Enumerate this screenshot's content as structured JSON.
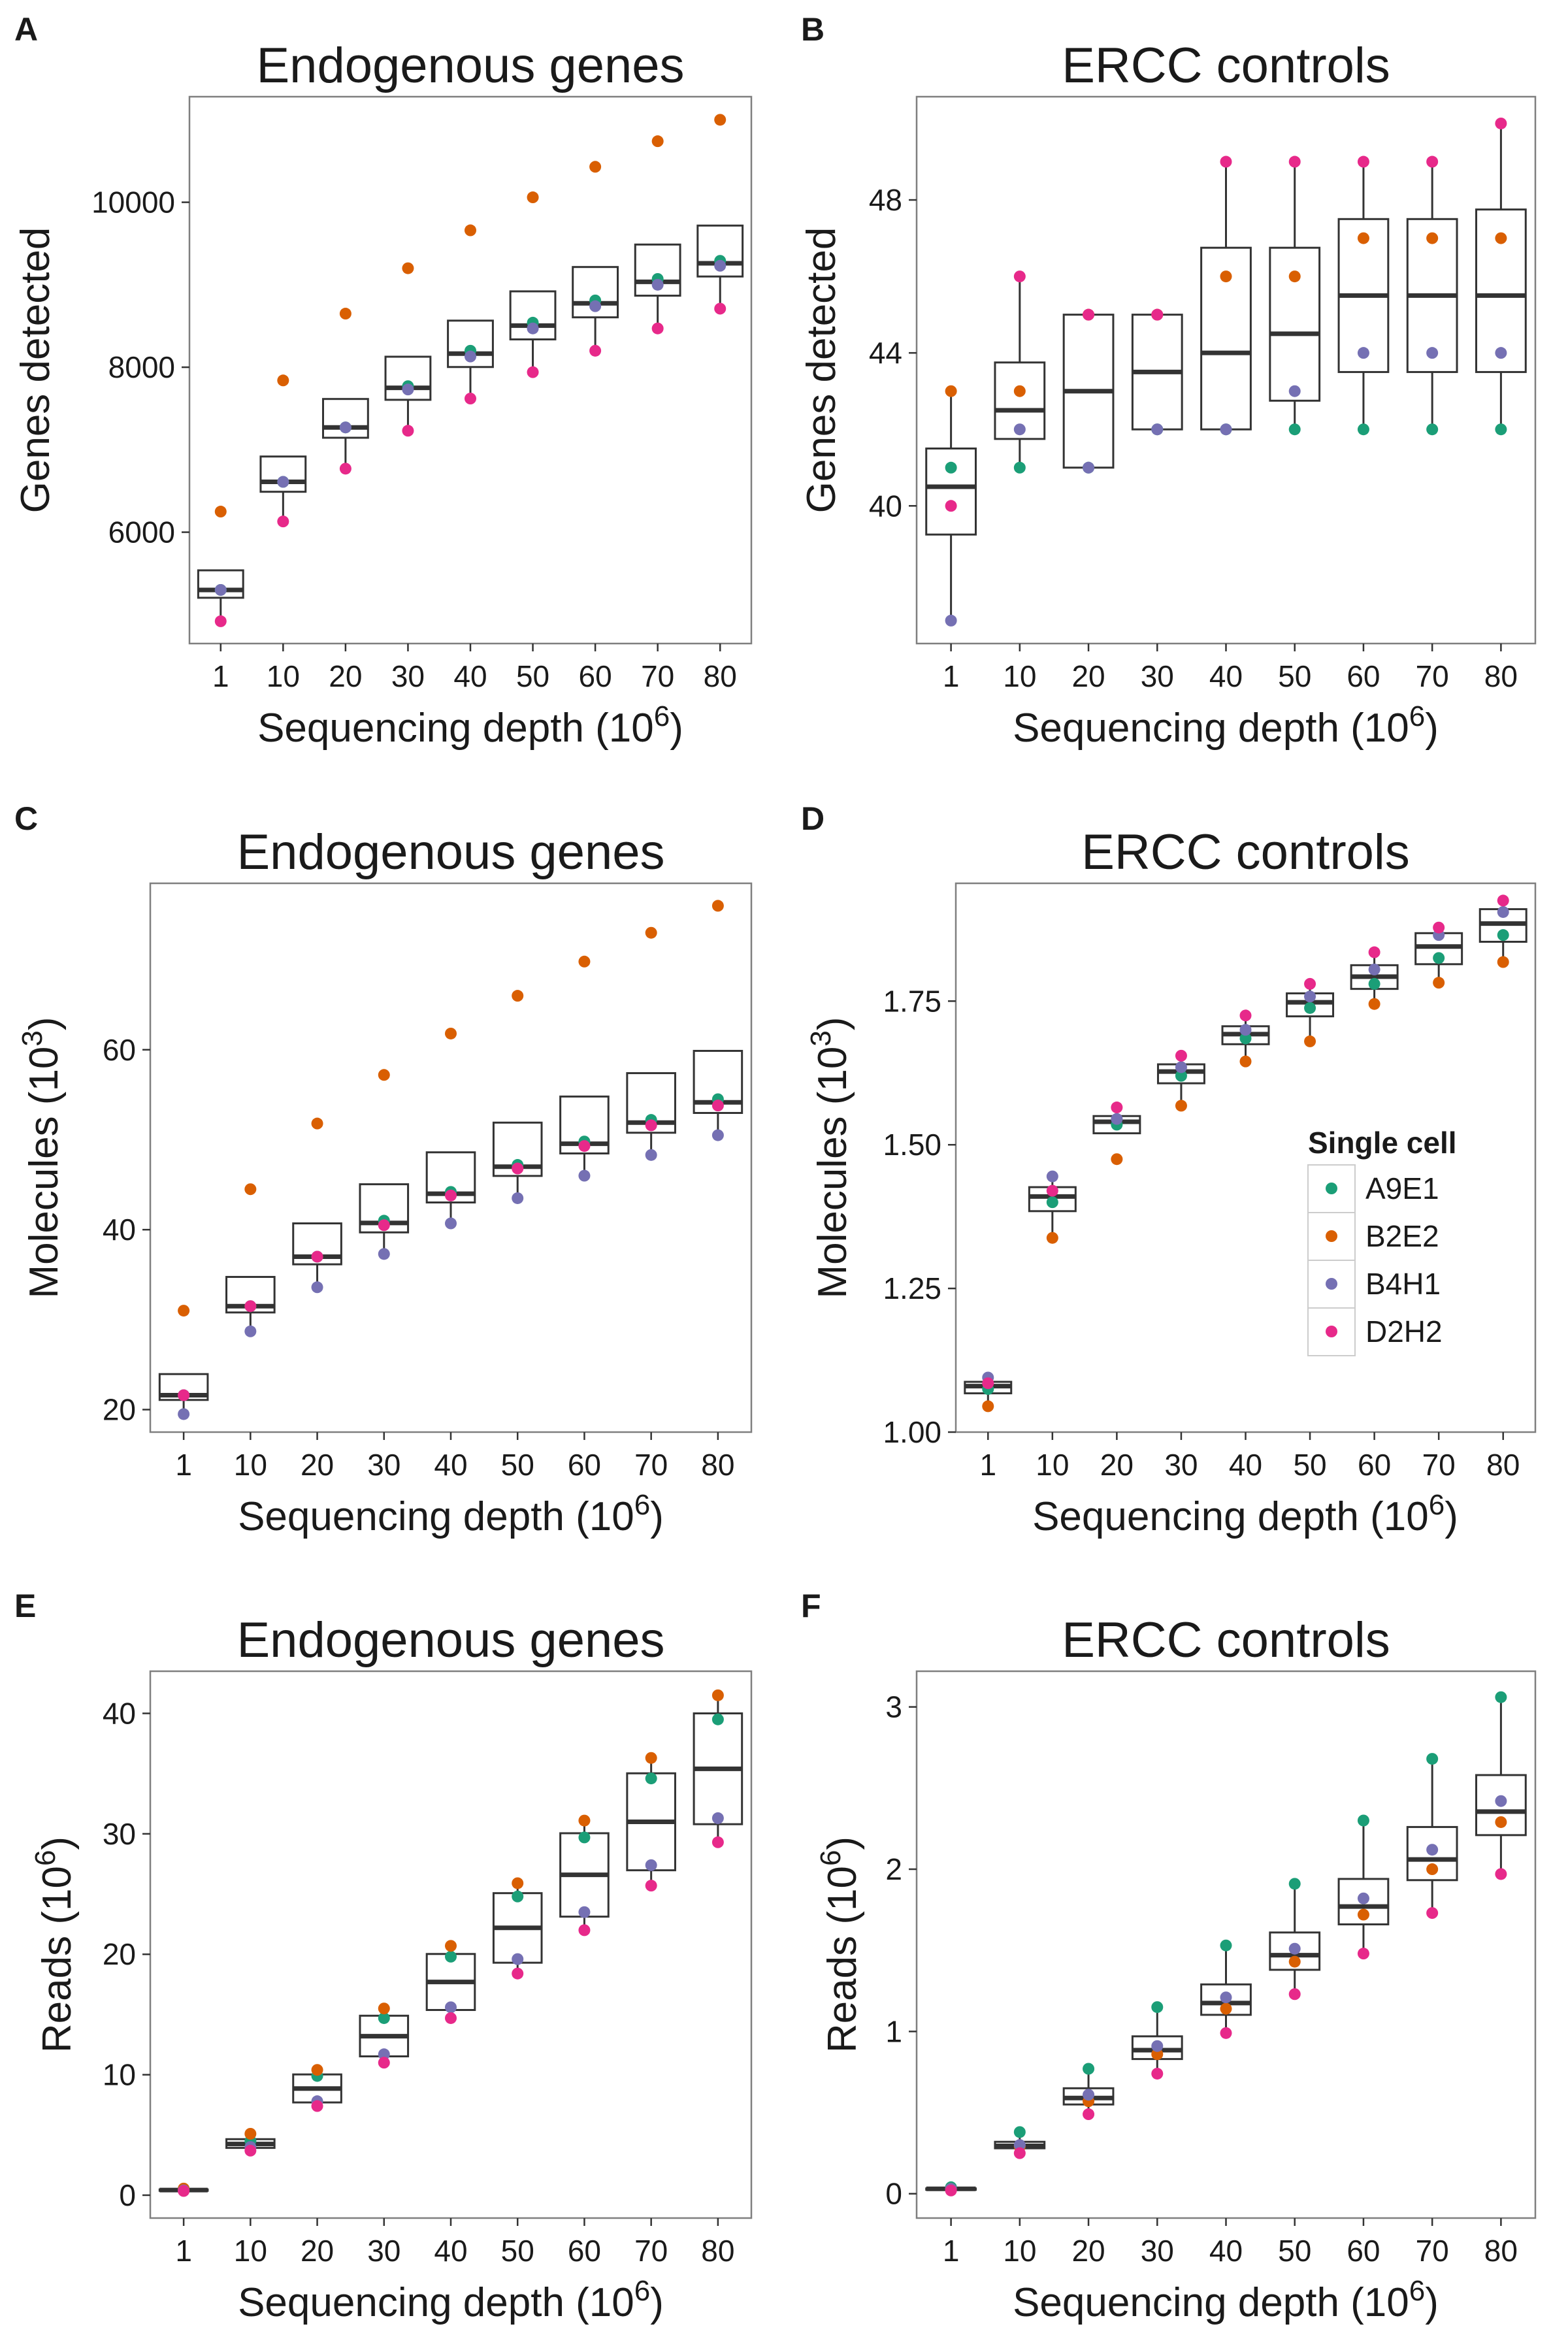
{
  "colors": {
    "A9E1": "#1b9e77",
    "B2E2": "#d95f02",
    "B4H1": "#7570b3",
    "D2H2": "#e7298a",
    "box_stroke": "#333333",
    "panel_border": "#7f7f7f"
  },
  "cell_order": [
    "A9E1",
    "B2E2",
    "B4H1",
    "D2H2"
  ],
  "legend": {
    "title": "Single cell",
    "entries": [
      "A9E1",
      "B2E2",
      "B4H1",
      "D2H2"
    ]
  },
  "chart_data": [
    {
      "panel": "A",
      "type": "box+scatter",
      "title": "Endogenous genes",
      "xlabel": "Sequencing depth (10",
      "xlabel_sup": "6",
      "xlabel_end": ")",
      "ylabel": "Genes detected",
      "categories": [
        "1",
        "10",
        "20",
        "30",
        "40",
        "50",
        "60",
        "70",
        "80"
      ],
      "ylim": [
        4650,
        11280
      ],
      "yticks": [
        6000,
        8000,
        10000
      ],
      "yticklabels": [
        "6000",
        "8000",
        "10000"
      ],
      "points": {
        "A9E1": [
          5300,
          6610,
          7270,
          7770,
          8200,
          8540,
          8810,
          9070,
          9290
        ],
        "B2E2": [
          6250,
          7840,
          8650,
          9200,
          9660,
          10060,
          10430,
          10740,
          11000
        ],
        "B4H1": [
          5300,
          6610,
          7270,
          7730,
          8130,
          8470,
          8740,
          9000,
          9230
        ],
        "D2H2": [
          4920,
          6130,
          6770,
          7230,
          7620,
          7940,
          8200,
          8470,
          8710
        ]
      }
    },
    {
      "panel": "B",
      "type": "box+scatter",
      "title": "ERCC controls",
      "xlabel": "Sequencing depth (10",
      "xlabel_sup": "6",
      "xlabel_end": ")",
      "ylabel": "Genes detected",
      "categories": [
        "1",
        "10",
        "20",
        "30",
        "40",
        "50",
        "60",
        "70",
        "80"
      ],
      "ylim": [
        36.4,
        50.7
      ],
      "yticks": [
        40,
        44,
        48
      ],
      "yticklabels": [
        "40",
        "44",
        "48"
      ],
      "points": {
        "A9E1": [
          41,
          41,
          41,
          42,
          42,
          42,
          42,
          42,
          42
        ],
        "B2E2": [
          43,
          43,
          45,
          45,
          46,
          46,
          47,
          47,
          47
        ],
        "B4H1": [
          37,
          42,
          41,
          42,
          42,
          43,
          44,
          44,
          44
        ],
        "D2H2": [
          40,
          46,
          45,
          45,
          49,
          49,
          49,
          49,
          50
        ]
      }
    },
    {
      "panel": "C",
      "type": "box+scatter",
      "title": "Endogenous genes",
      "xlabel": "Sequencing depth (10",
      "xlabel_sup": "6",
      "xlabel_end": ")",
      "ylabel": "Molecules (10",
      "ylabel_sup": "3",
      "ylabel_end": ")",
      "categories": [
        "1",
        "10",
        "20",
        "30",
        "40",
        "50",
        "60",
        "70",
        "80"
      ],
      "ylim": [
        17.5,
        78.5
      ],
      "yticks": [
        20,
        40,
        60
      ],
      "yticklabels": [
        "20",
        "40",
        "60"
      ],
      "points": {
        "A9E1": [
          21.6,
          31.5,
          37.0,
          41.0,
          44.2,
          47.2,
          49.8,
          52.2,
          54.5
        ],
        "B2E2": [
          31.0,
          44.5,
          51.8,
          57.2,
          61.8,
          66.0,
          69.8,
          73.0,
          76.0
        ],
        "B4H1": [
          19.5,
          28.7,
          33.6,
          37.3,
          40.7,
          43.5,
          46.0,
          48.3,
          50.5
        ],
        "D2H2": [
          21.6,
          31.5,
          37.0,
          40.5,
          43.8,
          46.8,
          49.3,
          51.6,
          53.8
        ]
      }
    },
    {
      "panel": "D",
      "type": "box+scatter",
      "title": "ERCC controls",
      "xlabel": "Sequencing depth (10",
      "xlabel_sup": "6",
      "xlabel_end": ")",
      "ylabel": "Molecules (10",
      "ylabel_sup": "3",
      "ylabel_end": ")",
      "categories": [
        "1",
        "10",
        "20",
        "30",
        "40",
        "50",
        "60",
        "70",
        "80"
      ],
      "ylim": [
        1.0,
        1.955
      ],
      "yticks": [
        1.0,
        1.25,
        1.5,
        1.75
      ],
      "yticklabels": [
        "1.00",
        "1.25",
        "1.50",
        "1.75"
      ],
      "points": {
        "A9E1": [
          1.075,
          1.4,
          1.535,
          1.62,
          1.685,
          1.738,
          1.78,
          1.825,
          1.865
        ],
        "B2E2": [
          1.045,
          1.338,
          1.475,
          1.568,
          1.645,
          1.68,
          1.745,
          1.782,
          1.818
        ],
        "B4H1": [
          1.095,
          1.445,
          1.545,
          1.635,
          1.7,
          1.758,
          1.805,
          1.865,
          1.905
        ],
        "D2H2": [
          1.085,
          1.42,
          1.565,
          1.655,
          1.725,
          1.78,
          1.835,
          1.878,
          1.925
        ]
      }
    },
    {
      "panel": "E",
      "type": "box+scatter",
      "title": "Endogenous genes",
      "xlabel": "Sequencing depth (10",
      "xlabel_sup": "6",
      "xlabel_end": ")",
      "ylabel": "Reads (10",
      "ylabel_sup": "6",
      "ylabel_end": ")",
      "categories": [
        "1",
        "10",
        "20",
        "30",
        "40",
        "50",
        "60",
        "70",
        "80"
      ],
      "ylim": [
        -1.9,
        43.5
      ],
      "yticks": [
        0,
        10,
        20,
        30,
        40
      ],
      "yticklabels": [
        "0",
        "10",
        "20",
        "30",
        "40"
      ],
      "points": {
        "A9E1": [
          0.45,
          4.5,
          9.9,
          14.7,
          19.8,
          24.8,
          29.7,
          34.6,
          39.5
        ],
        "B2E2": [
          0.55,
          5.1,
          10.4,
          15.5,
          20.7,
          25.9,
          31.1,
          36.3,
          41.5
        ],
        "B4H1": [
          0.4,
          4.0,
          7.8,
          11.7,
          15.6,
          19.6,
          23.5,
          27.4,
          31.3
        ],
        "D2H2": [
          0.35,
          3.7,
          7.4,
          11.0,
          14.7,
          18.4,
          22.0,
          25.7,
          29.3
        ]
      }
    },
    {
      "panel": "F",
      "type": "box+scatter",
      "title": "ERCC controls",
      "xlabel": "Sequencing depth (10",
      "xlabel_sup": "6",
      "xlabel_end": ")",
      "ylabel": "Reads (10",
      "ylabel_sup": "6",
      "ylabel_end": ")",
      "categories": [
        "1",
        "10",
        "20",
        "30",
        "40",
        "50",
        "60",
        "70",
        "80"
      ],
      "ylim": [
        -0.15,
        3.22
      ],
      "yticks": [
        0,
        1,
        2,
        3
      ],
      "yticklabels": [
        "0",
        "1",
        "2",
        "3"
      ],
      "points": {
        "A9E1": [
          0.04,
          0.38,
          0.77,
          1.15,
          1.53,
          1.91,
          2.3,
          2.68,
          3.06
        ],
        "B2E2": [
          0.03,
          0.29,
          0.57,
          0.86,
          1.14,
          1.43,
          1.72,
          2.0,
          2.29
        ],
        "B4H1": [
          0.03,
          0.3,
          0.61,
          0.91,
          1.21,
          1.51,
          1.82,
          2.12,
          2.42
        ],
        "D2H2": [
          0.02,
          0.25,
          0.49,
          0.74,
          0.99,
          1.23,
          1.48,
          1.73,
          1.97
        ]
      }
    }
  ]
}
